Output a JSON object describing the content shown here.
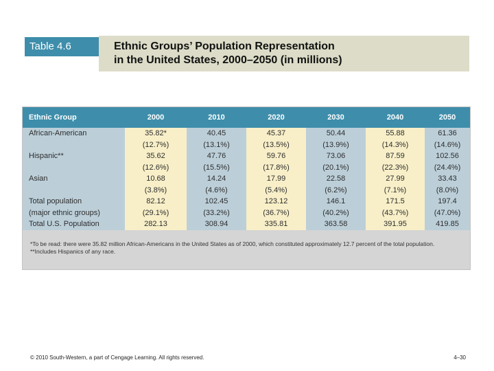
{
  "slide": {
    "tag": "Table 4.6",
    "title_line1": "Ethnic Groups’ Population Representation",
    "title_line2": "in the United States, 2000–2050 (in millions)",
    "footer": "© 2010 South-Western, a part of Cengage Learning. All rights reserved.",
    "page_number": "4–30"
  },
  "table": {
    "headers": [
      "Ethnic Group",
      "2000",
      "2010",
      "2020",
      "2030",
      "2040",
      "2050"
    ],
    "rows": [
      [
        "African-American",
        "35.82*",
        "40.45",
        "45.37",
        "50.44",
        "55.88",
        "61.36"
      ],
      [
        "",
        "(12.7%)",
        "(13.1%)",
        "(13.5%)",
        "(13.9%)",
        "(14.3%)",
        "(14.6%)"
      ],
      [
        "Hispanic**",
        "35.62",
        "47.76",
        "59.76",
        "73.06",
        "87.59",
        "102.56"
      ],
      [
        "",
        "(12.6%)",
        "(15.5%)",
        "(17.8%)",
        "(20.1%)",
        "(22.3%)",
        "(24.4%)"
      ],
      [
        "Asian",
        "10.68",
        "14.24",
        "17.99",
        "22.58",
        "27.99",
        "33.43"
      ],
      [
        "",
        "(3.8%)",
        "(4.6%)",
        "(5.4%)",
        "(6.2%)",
        "(7.1%)",
        "(8.0%)"
      ],
      [
        "Total population",
        "82.12",
        "102.45",
        "123.12",
        "146.1",
        "171.5",
        "197.4"
      ],
      [
        "(major ethnic groups)",
        "(29.1%)",
        "(33.2%)",
        "(36.7%)",
        "(40.2%)",
        "(43.7%)",
        "(47.0%)"
      ],
      [
        "Total U.S. Population",
        "282.13",
        "308.94",
        "335.81",
        "363.58",
        "391.95",
        "419.85"
      ]
    ],
    "note1": "*To be read: there were 35.82 million African-Americans in the United States as of 2000, which constituted approximately 12.7 percent of the total population.",
    "note2": "**Includes Hispanics of any race."
  }
}
